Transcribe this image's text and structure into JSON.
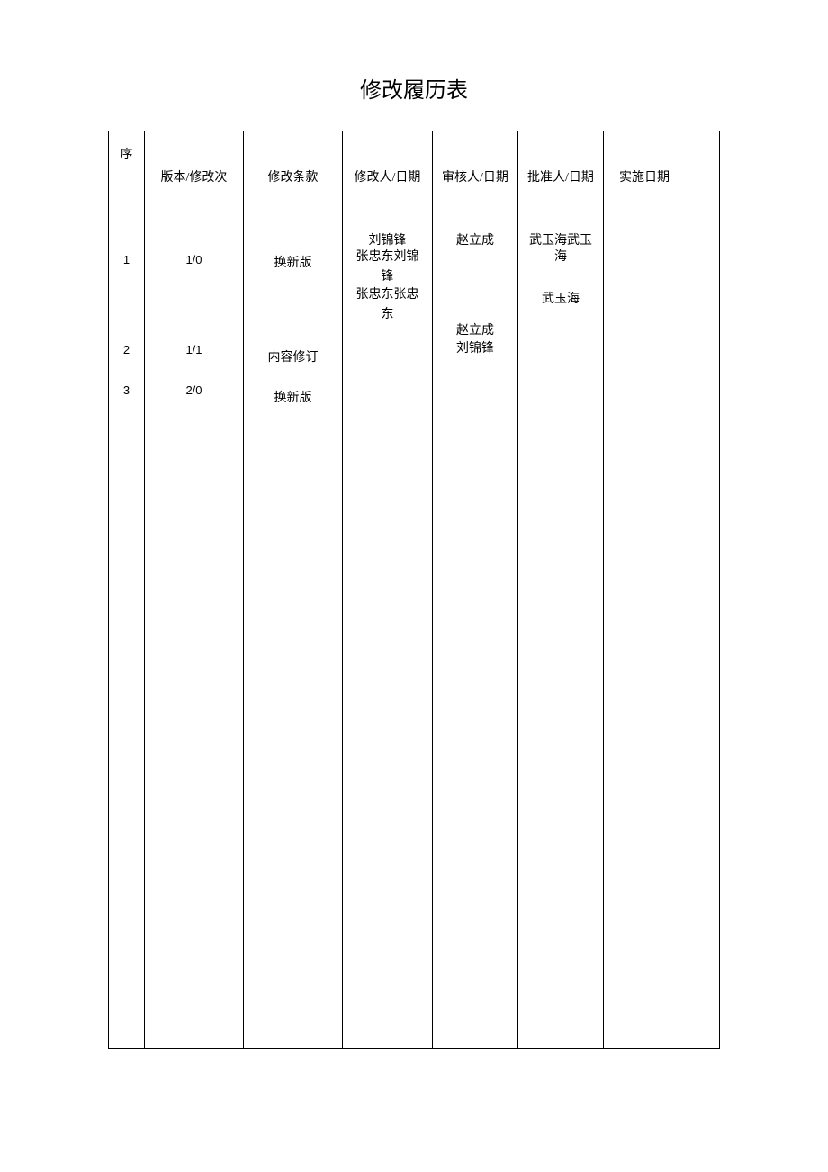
{
  "title": "修改履历表",
  "table": {
    "columns": {
      "seq": "序",
      "version": "版本/修改次",
      "clause": "修改条款",
      "modifier": "修改人/日期",
      "reviewer": "审核人/日期",
      "approver": "批准人/日期",
      "impl_date": "实施日期"
    },
    "col_widths": {
      "seq": 40,
      "version": 110,
      "clause": 110,
      "modifier": 100,
      "reviewer": 95,
      "approver": 95,
      "impl_date": 90
    },
    "seq_values": [
      "1",
      "2",
      "3"
    ],
    "seq_positions": [
      35,
      135,
      180
    ],
    "version_values": [
      "1/0",
      "1/1",
      "2/0"
    ],
    "version_positions": [
      35,
      135,
      180
    ],
    "clause_values": [
      "换新版",
      "内容修订",
      "换新版"
    ],
    "clause_positions": [
      35,
      140,
      185
    ],
    "modifier_lines": [
      "刘锦锋",
      "张忠东刘锦",
      "锋",
      "张忠东张忠",
      "东"
    ],
    "modifier_positions": [
      10,
      28,
      50,
      70,
      92
    ],
    "reviewer_lines": [
      "赵立成",
      "赵立成",
      "刘锦锋"
    ],
    "reviewer_positions": [
      10,
      110,
      130
    ],
    "approver_lines": [
      "武玉海武玉",
      "海",
      "武玉海"
    ],
    "approver_positions": [
      10,
      28,
      75
    ]
  },
  "colors": {
    "background": "#ffffff",
    "text": "#000000",
    "border": "#000000"
  },
  "typography": {
    "title_fontsize": 24,
    "header_fontsize": 14,
    "body_fontsize": 13
  }
}
